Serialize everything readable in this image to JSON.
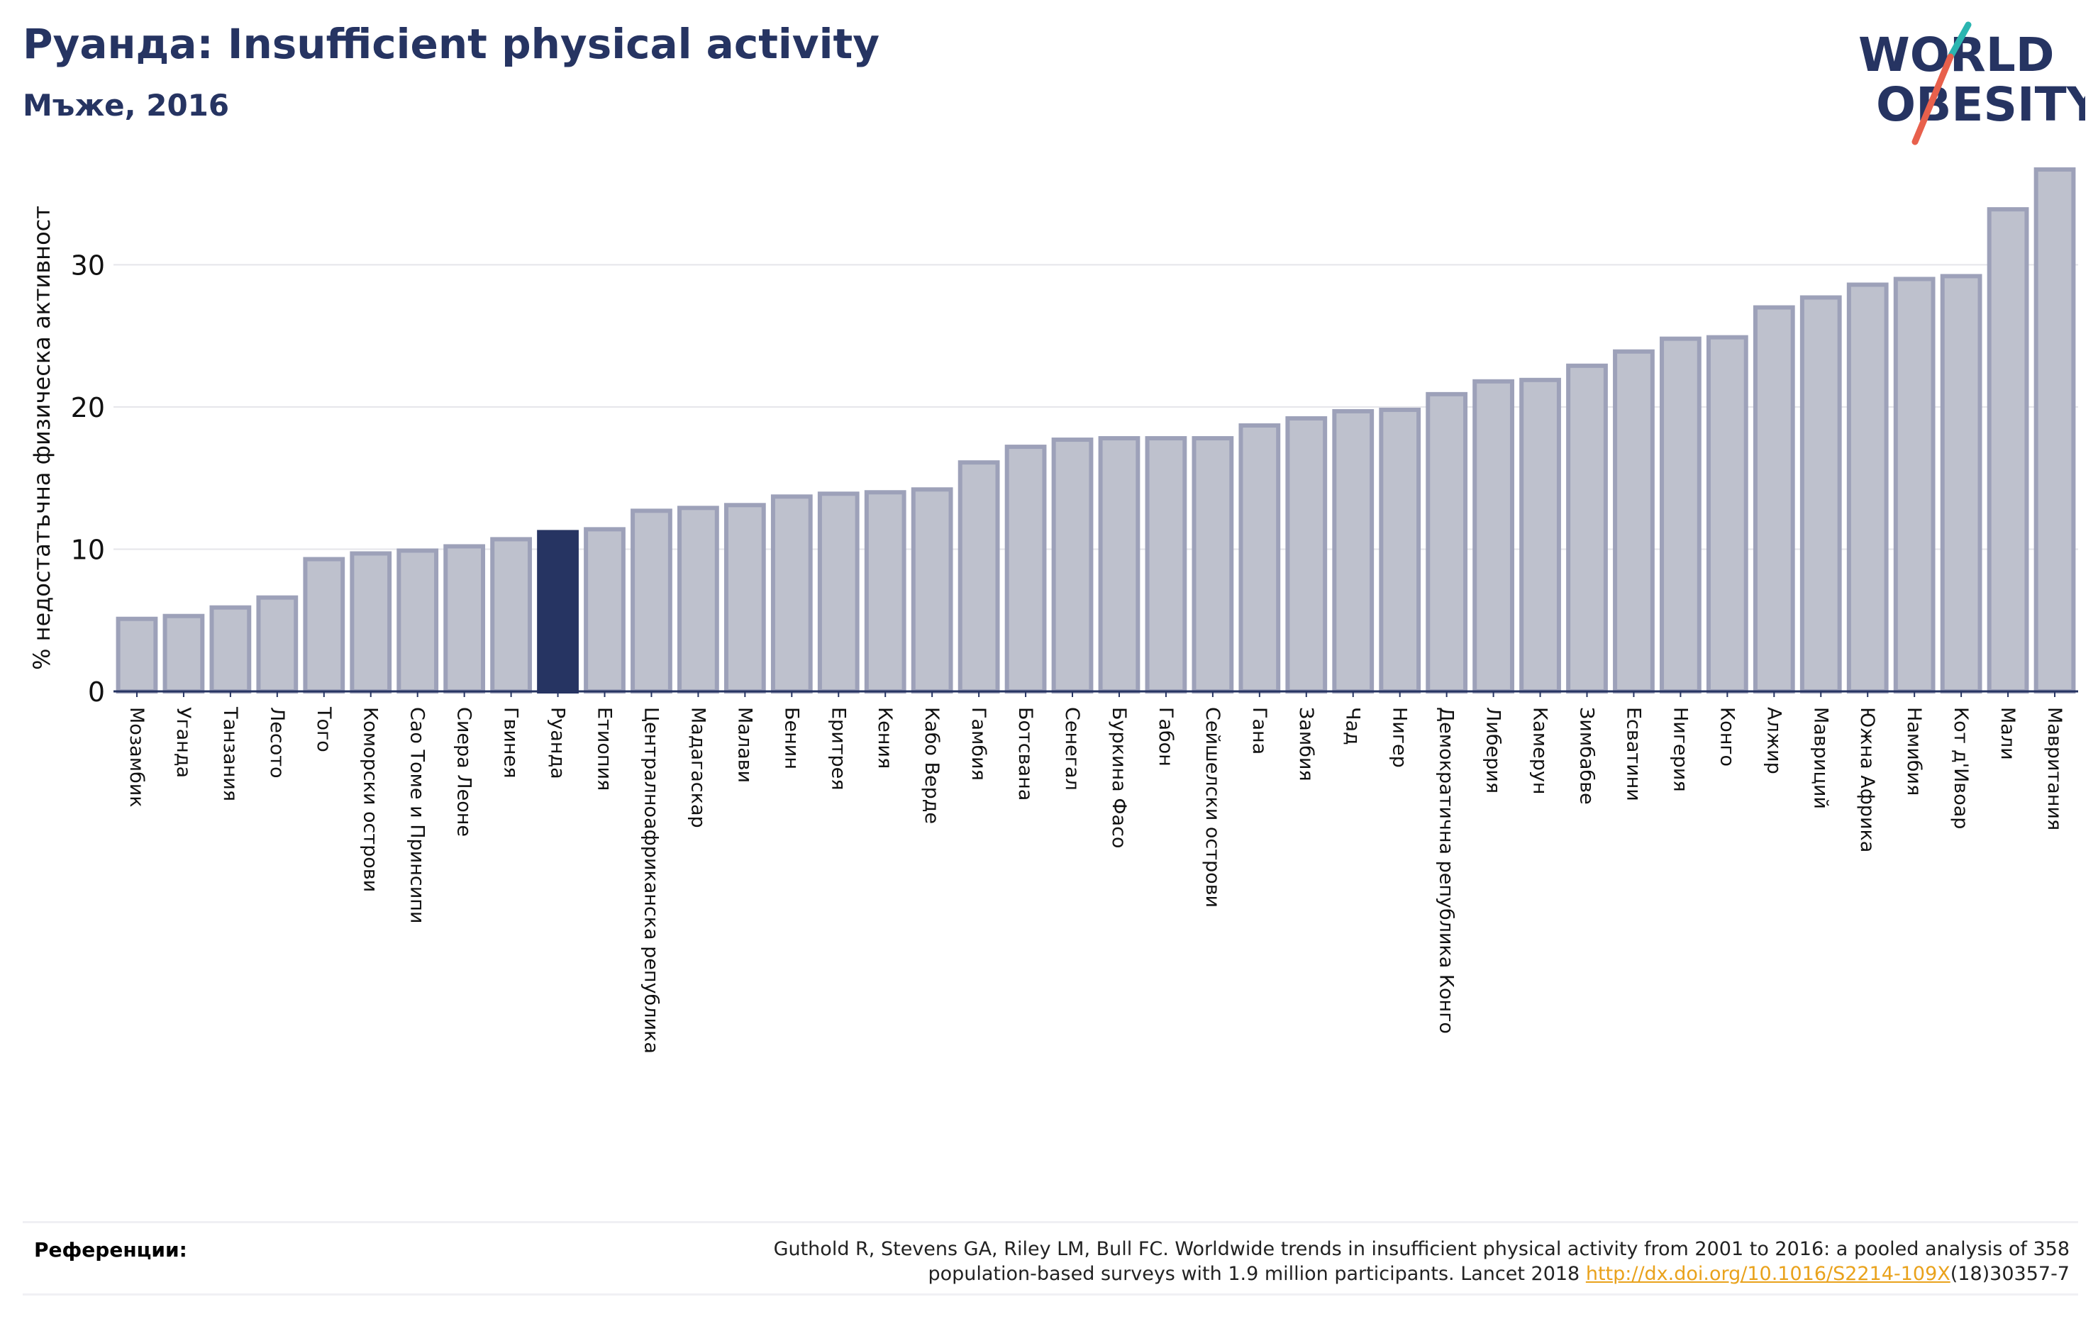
{
  "header": {
    "title": "Руанда: Insufficient physical activity",
    "subtitle": "Мъже, 2016"
  },
  "logo": {
    "line1": "WORLD",
    "line2": "OBESITY",
    "colors": {
      "text": "#263462",
      "slash_teal": "#2bb5b0",
      "slash_red": "#e8604c"
    }
  },
  "chart_data": {
    "type": "bar",
    "ylabel": "% недостатъчна физическа активност",
    "ylim": [
      0,
      37
    ],
    "yticks": [
      0,
      10,
      20,
      30
    ],
    "grid": true,
    "highlight": "Руанда",
    "colors": {
      "bar": "#bec1cd",
      "bar_edge": "#9da1b9",
      "highlight": "#263462",
      "grid": "#e5e5ea"
    },
    "categories": [
      "Мозамбик",
      "Уганда",
      "Танзания",
      "Лесото",
      "Того",
      "Коморски острови",
      "Сао Томе и Принсипи",
      "Сиера Леоне",
      "Гвинея",
      "Руанда",
      "Етиопия",
      "Централноафриканска република",
      "Мадагаскар",
      "Малави",
      "Бенин",
      "Еритрея",
      "Кения",
      "Кабо Верде",
      "Гамбия",
      "Ботсвана",
      "Сенегал",
      "Буркина Фасо",
      "Габон",
      "Сейшелски острови",
      "Гана",
      "Замбия",
      "Чад",
      "Нигер",
      "Демократична република Конго",
      "Либерия",
      "Камерун",
      "Зимбабве",
      "Есватини",
      "Нигерия",
      "Конго",
      "Алжир",
      "Мавриций",
      "Южна Африка",
      "Намибия",
      "Кот д'Ивоар",
      "Мали",
      "Мавритания"
    ],
    "values": [
      5.1,
      5.3,
      5.9,
      6.6,
      9.3,
      9.7,
      9.9,
      10.2,
      10.7,
      11.2,
      11.4,
      12.7,
      12.9,
      13.1,
      13.7,
      13.9,
      14.0,
      14.2,
      16.1,
      17.2,
      17.7,
      17.8,
      17.8,
      17.8,
      18.7,
      19.2,
      19.7,
      19.8,
      20.9,
      21.8,
      21.9,
      22.9,
      23.9,
      24.8,
      24.9,
      27.0,
      27.7,
      28.6,
      29.0,
      29.2,
      33.9,
      36.7
    ]
  },
  "references": {
    "label": "Референции:",
    "line1": "Guthold R, Stevens GA, Riley LM, Bull FC. Worldwide trends in insufficient physical activity from 2001 to 2016: a pooled analysis of 358",
    "line2_prefix": "population-based surveys with 1.9 million participants. Lancet 2018 ",
    "link": "http://dx.doi.org/10.1016/S2214-109X",
    "line2_suffix": "(18)30357-7"
  }
}
